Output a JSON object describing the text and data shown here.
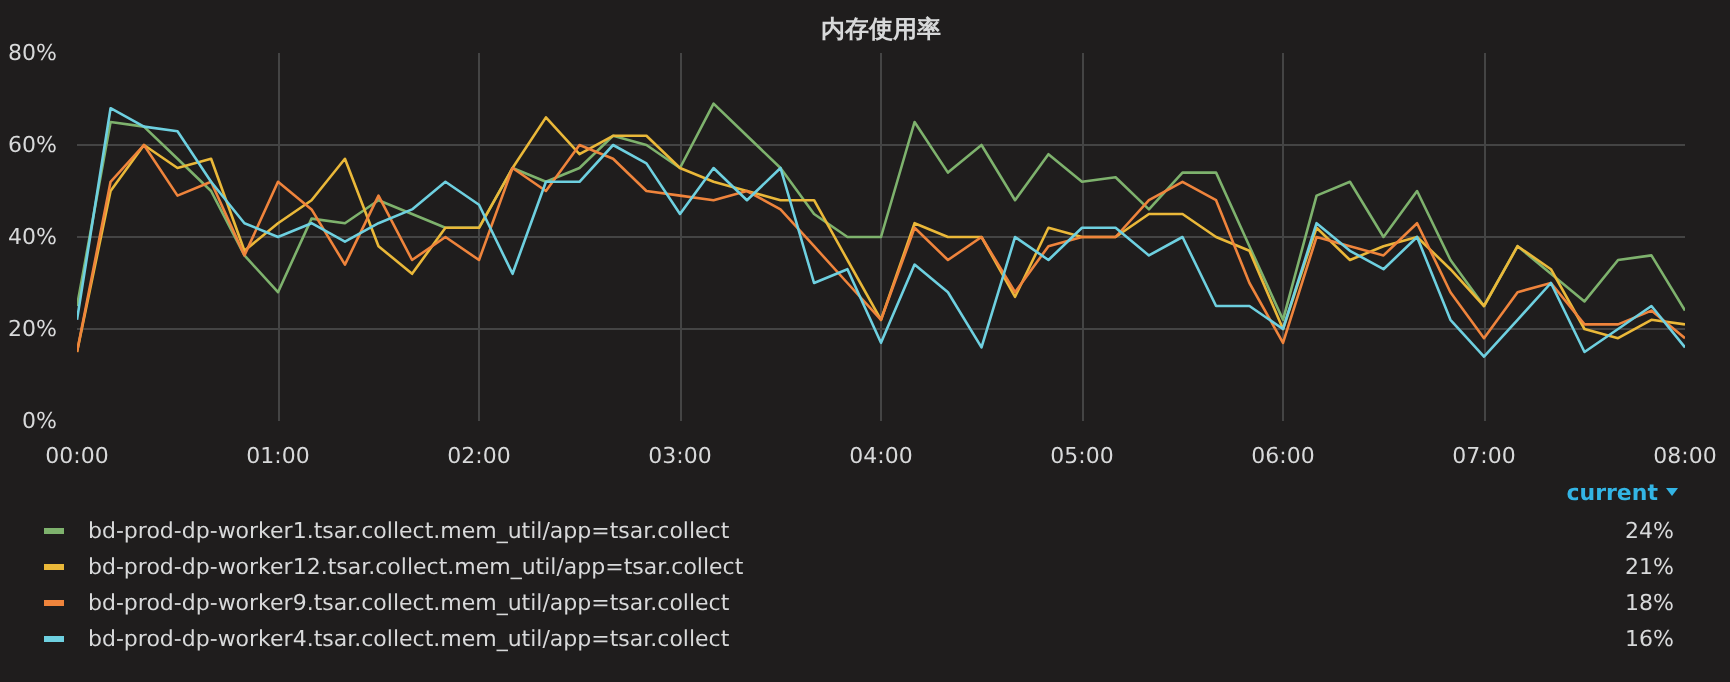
{
  "chart_data": {
    "type": "line",
    "title": "内存使用率",
    "legend_title": "current",
    "legend": "bottom",
    "grid": true,
    "xlim": [
      0,
      8
    ],
    "ylim": [
      0,
      80
    ],
    "xticks": [
      {
        "value": 0,
        "label": "00:00"
      },
      {
        "value": 1,
        "label": "01:00"
      },
      {
        "value": 2,
        "label": "02:00"
      },
      {
        "value": 3,
        "label": "03:00"
      },
      {
        "value": 4,
        "label": "04:00"
      },
      {
        "value": 5,
        "label": "05:00"
      },
      {
        "value": 6,
        "label": "06:00"
      },
      {
        "value": 7,
        "label": "07:00"
      },
      {
        "value": 8,
        "label": "08:00"
      }
    ],
    "yticks": [
      {
        "value": 0,
        "label": "0%"
      },
      {
        "value": 20,
        "label": "20%"
      },
      {
        "value": 40,
        "label": "40%"
      },
      {
        "value": 60,
        "label": "60%"
      },
      {
        "value": 80,
        "label": "80%"
      }
    ],
    "x": [
      0,
      0.167,
      0.333,
      0.5,
      0.667,
      0.833,
      1,
      1.167,
      1.333,
      1.5,
      1.667,
      1.833,
      2,
      2.167,
      2.333,
      2.5,
      2.667,
      2.833,
      3,
      3.167,
      3.333,
      3.5,
      3.667,
      3.833,
      4,
      4.167,
      4.333,
      4.5,
      4.667,
      4.833,
      5,
      5.167,
      5.333,
      5.5,
      5.667,
      5.833,
      6,
      6.167,
      6.333,
      6.5,
      6.667,
      6.833,
      7,
      7.167,
      7.333,
      7.5,
      7.667,
      7.833,
      8
    ],
    "series": [
      {
        "name": "bd-prod-dp-worker1.tsar.collect.mem_util/app=tsar.collect",
        "color": "#7eb26d",
        "values": [
          25,
          65,
          64,
          57,
          50,
          36,
          28,
          44,
          43,
          48,
          45,
          42,
          42,
          55,
          52,
          55,
          62,
          60,
          55,
          69,
          62,
          55,
          45,
          40,
          40,
          65,
          54,
          60,
          48,
          58,
          52,
          53,
          46,
          54,
          54,
          38,
          22,
          49,
          52,
          40,
          50,
          35,
          25,
          38,
          32,
          26,
          35,
          36,
          24
        ]
      },
      {
        "name": "bd-prod-dp-worker12.tsar.collect.mem_util/app=tsar.collect",
        "color": "#eab839",
        "values": [
          15,
          50,
          60,
          55,
          57,
          37,
          43,
          48,
          57,
          38,
          32,
          42,
          42,
          55,
          66,
          58,
          62,
          62,
          55,
          52,
          50,
          48,
          48,
          35,
          22,
          43,
          40,
          40,
          27,
          42,
          40,
          40,
          45,
          45,
          40,
          37,
          20,
          42,
          35,
          38,
          40,
          33,
          25,
          38,
          33,
          20,
          18,
          22,
          21
        ]
      },
      {
        "name": "bd-prod-dp-worker9.tsar.collect.mem_util/app=tsar.collect",
        "color": "#ef843c",
        "values": [
          15,
          52,
          60,
          49,
          52,
          36,
          52,
          46,
          34,
          49,
          35,
          40,
          35,
          55,
          50,
          60,
          57,
          50,
          49,
          48,
          50,
          46,
          38,
          30,
          22,
          42,
          35,
          40,
          28,
          38,
          40,
          40,
          48,
          52,
          48,
          30,
          17,
          40,
          38,
          36,
          43,
          28,
          18,
          28,
          30,
          21,
          21,
          24,
          18
        ]
      },
      {
        "name": "bd-prod-dp-worker4.tsar.collect.mem_util/app=tsar.collect",
        "color": "#6ed0e0",
        "values": [
          22,
          68,
          64,
          63,
          52,
          43,
          40,
          43,
          39,
          43,
          46,
          52,
          47,
          32,
          52,
          52,
          60,
          56,
          45,
          55,
          48,
          55,
          30,
          33,
          17,
          34,
          28,
          16,
          40,
          35,
          42,
          42,
          36,
          40,
          25,
          25,
          20,
          43,
          37,
          33,
          40,
          22,
          14,
          22,
          30,
          15,
          20,
          25,
          16
        ]
      }
    ],
    "annotations": [
      "24%",
      "21%",
      "18%",
      "16%"
    ]
  }
}
